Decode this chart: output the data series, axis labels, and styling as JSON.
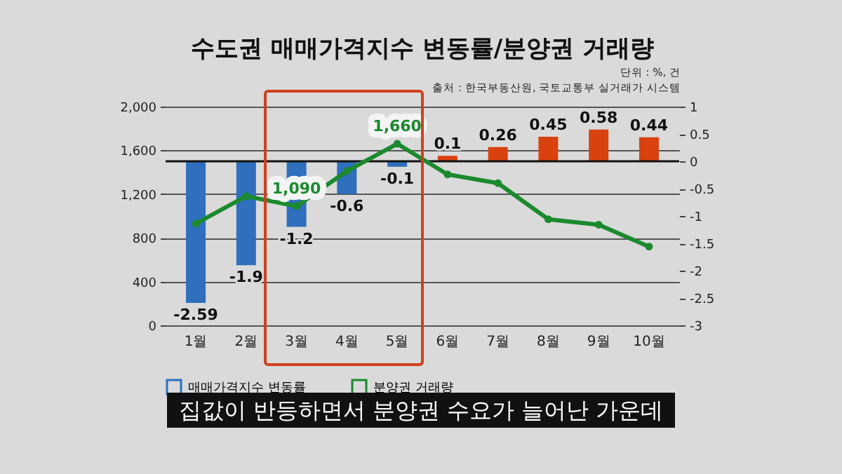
{
  "chart_data": {
    "type": "bar",
    "title": "수도권 매매가격지수 변동률/분양권 거래량",
    "annotations": [
      "단위 : %, 건",
      "출처 : 한국부동산원, 국토교통부 실거래가 시스템",
      "집값이 반등하면서 분양권 수요가 늘어난 가운데"
    ],
    "categories": [
      "1월",
      "2월",
      "3월",
      "4월",
      "5월",
      "6월",
      "7월",
      "8월",
      "9월",
      "10월"
    ],
    "series": [
      {
        "name": "매매가격지수 변동률",
        "axis": "y2",
        "color": "#2f6fbd",
        "colors": [
          "#2f6fbd",
          "#2f6fbd",
          "#2f6fbd",
          "#2f6fbd",
          "#2f6fbd",
          "#d9420f",
          "#d9420f",
          "#d9420f",
          "#d9420f",
          "#d9420f"
        ],
        "values": [
          -2.59,
          -1.9,
          -1.2,
          -0.6,
          -0.1,
          0.1,
          0.26,
          0.45,
          0.58,
          0.44
        ],
        "value_labels": [
          "-2.59",
          "-1.9",
          "-1.2",
          "-0.6",
          "-0.1",
          "0.1",
          "0.26",
          "0.45",
          "0.58",
          "0.44"
        ]
      },
      {
        "name": "분양권 거래량",
        "type": "line",
        "color": "#1b8a2e",
        "values": [
          930,
          1180,
          1090,
          1410,
          1660,
          1380,
          1300,
          970,
          920,
          720
        ],
        "value_labels": [
          null,
          null,
          "1,090",
          null,
          "1,660",
          null,
          null,
          null,
          null,
          null
        ]
      }
    ],
    "ylim": [
      0,
      2000
    ],
    "yticks": [
      {
        "value": 0,
        "label": "0"
      },
      {
        "value": 400,
        "label": "400"
      },
      {
        "value": 800,
        "label": "800"
      },
      {
        "value": 1200,
        "label": "1,200"
      },
      {
        "value": 1600,
        "label": "1,600"
      },
      {
        "value": 2000,
        "label": "2,000"
      }
    ],
    "y2lim": [
      -3,
      1
    ],
    "y2ticks": [
      -3,
      -2.5,
      -2,
      -1.5,
      -1,
      -0.5,
      0,
      0.5,
      1
    ],
    "ref_lines": [
      {
        "axis": "y2",
        "value": 0,
        "color": "#111111"
      }
    ],
    "grid": "y",
    "legend": "bottom",
    "marker": "circle",
    "line_style": "solid"
  }
}
